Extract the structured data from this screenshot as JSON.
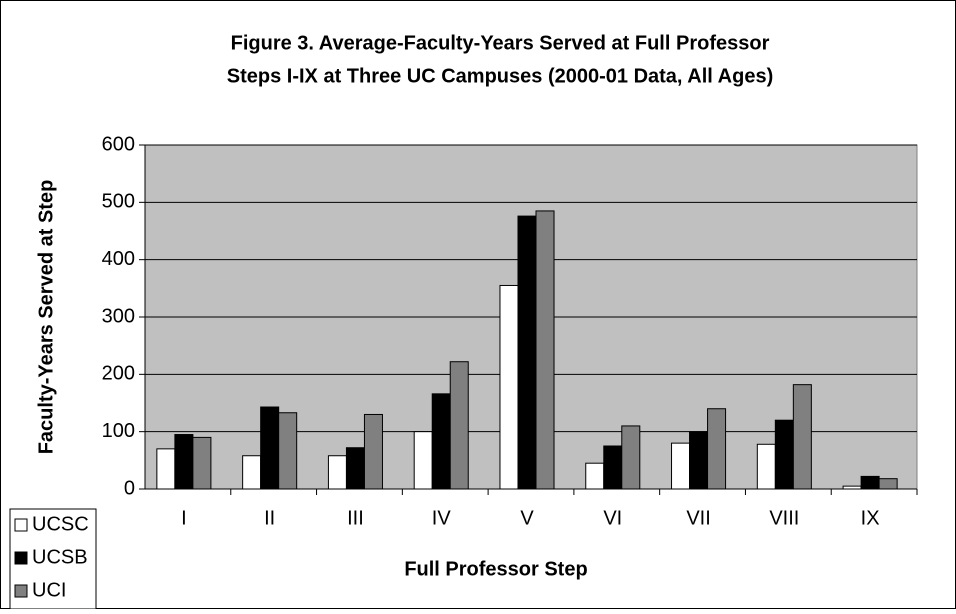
{
  "chart_data": {
    "type": "bar",
    "title": [
      "Figure 3.  Average-Faculty-Years Served at Full Professor",
      "Steps I-IX at Three UC Campuses (2000-01 Data, All Ages)"
    ],
    "x_label": "Full Professor Step",
    "y_label": "Faculty-Years Served at Step",
    "categories": [
      "I",
      "II",
      "III",
      "IV",
      "V",
      "VI",
      "VII",
      "VIII",
      "IX"
    ],
    "series": [
      {
        "name": "UCSC",
        "color": "#ffffff",
        "values": [
          70,
          58,
          58,
          100,
          355,
          45,
          80,
          78,
          5
        ]
      },
      {
        "name": "UCSB",
        "color": "#000000",
        "values": [
          95,
          143,
          72,
          166,
          476,
          75,
          100,
          120,
          22
        ]
      },
      {
        "name": "UCI",
        "color": "#808080",
        "values": [
          90,
          133,
          130,
          222,
          485,
          110,
          140,
          182,
          18
        ]
      }
    ],
    "ylim": [
      0,
      600
    ],
    "yticks": [
      0,
      100,
      200,
      300,
      400,
      500,
      600
    ],
    "grid": true,
    "legend": "bottom-left",
    "plot_background": "#c0c0c0"
  }
}
